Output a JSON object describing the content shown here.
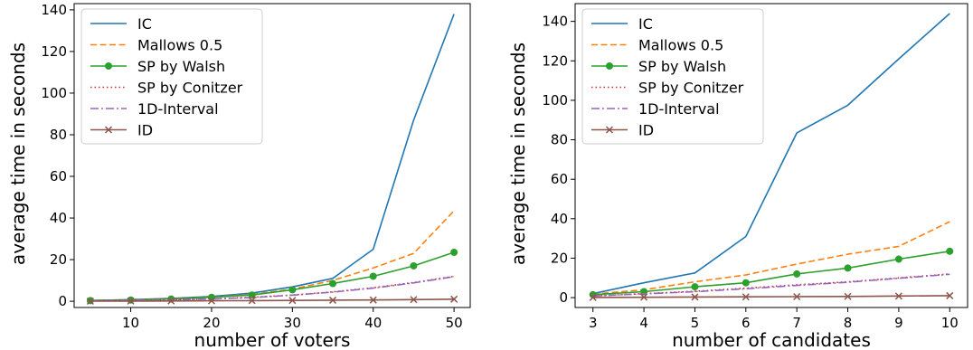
{
  "chart_data": [
    {
      "type": "line",
      "xlabel": "number of voters",
      "ylabel": "average time in seconds",
      "xlim": [
        3,
        52
      ],
      "ylim": [
        -3,
        143
      ],
      "x_ticks": [
        10,
        20,
        30,
        40,
        50
      ],
      "y_ticks": [
        0,
        20,
        40,
        60,
        80,
        100,
        120,
        140
      ],
      "legend_position": "top-left",
      "x": [
        5,
        10,
        15,
        20,
        25,
        30,
        35,
        40,
        45,
        50
      ],
      "series": [
        {
          "name": "IC",
          "color": "#1f77b4",
          "style": "solid",
          "marker": "none",
          "values": [
            0.4,
            0.8,
            1.4,
            2.3,
            3.9,
            6.9,
            11.0,
            25.0,
            87.0,
            138.0
          ]
        },
        {
          "name": "Mallows 0.5",
          "color": "#ff7f0e",
          "style": "dashed",
          "marker": "none",
          "values": [
            0.3,
            0.7,
            1.2,
            2.0,
            3.3,
            5.8,
            10.0,
            16.0,
            23.0,
            43.5
          ]
        },
        {
          "name": "SP by Walsh",
          "color": "#2ca02c",
          "style": "solid",
          "marker": "circle",
          "values": [
            0.3,
            0.6,
            1.1,
            1.9,
            3.0,
            5.5,
            8.5,
            12.0,
            17.0,
            23.5
          ]
        },
        {
          "name": "SP by Conitzer",
          "color": "#d62728",
          "style": "dotted",
          "marker": "none",
          "values": [
            0.2,
            0.4,
            0.7,
            1.1,
            1.9,
            3.0,
            4.5,
            6.5,
            9.0,
            12.0
          ]
        },
        {
          "name": "1D-Interval",
          "color": "#9467bd",
          "style": "dashdot",
          "marker": "none",
          "values": [
            0.2,
            0.4,
            0.7,
            1.1,
            1.8,
            2.9,
            4.4,
            6.3,
            8.8,
            11.8
          ]
        },
        {
          "name": "ID",
          "color": "#8c564b",
          "style": "solid",
          "marker": "x",
          "values": [
            0.05,
            0.1,
            0.15,
            0.2,
            0.3,
            0.4,
            0.5,
            0.6,
            0.8,
            1.0
          ]
        }
      ]
    },
    {
      "type": "line",
      "xlabel": "number of candidates",
      "ylabel": "average time in seconds",
      "xlim": [
        2.65,
        10.35
      ],
      "ylim": [
        -5,
        149
      ],
      "x_ticks": [
        3,
        4,
        5,
        6,
        7,
        8,
        9,
        10
      ],
      "y_ticks": [
        0,
        20,
        40,
        60,
        80,
        100,
        120,
        140
      ],
      "legend_position": "top-left",
      "x": [
        3,
        4,
        5,
        6,
        7,
        8,
        9,
        10
      ],
      "series": [
        {
          "name": "IC",
          "color": "#1f77b4",
          "style": "solid",
          "marker": "none",
          "values": [
            2.0,
            7.5,
            12.5,
            31.0,
            83.5,
            97.5,
            121.0,
            144.0
          ]
        },
        {
          "name": "Mallows 0.5",
          "color": "#ff7f0e",
          "style": "dashed",
          "marker": "none",
          "values": [
            1.8,
            4.0,
            8.0,
            11.5,
            17.0,
            22.0,
            26.0,
            38.5
          ]
        },
        {
          "name": "SP by Walsh",
          "color": "#2ca02c",
          "style": "solid",
          "marker": "circle",
          "values": [
            1.5,
            3.0,
            5.5,
            7.5,
            12.0,
            15.0,
            19.5,
            23.5
          ]
        },
        {
          "name": "SP by Conitzer",
          "color": "#d62728",
          "style": "dotted",
          "marker": "none",
          "values": [
            0.8,
            2.0,
            3.2,
            4.8,
            6.5,
            8.0,
            10.0,
            12.0
          ]
        },
        {
          "name": "1D-Interval",
          "color": "#9467bd",
          "style": "dashdot",
          "marker": "none",
          "values": [
            0.8,
            1.9,
            3.0,
            4.5,
            6.2,
            7.8,
            9.8,
            11.8
          ]
        },
        {
          "name": "ID",
          "color": "#8c564b",
          "style": "solid",
          "marker": "x",
          "values": [
            0.1,
            0.2,
            0.3,
            0.4,
            0.5,
            0.6,
            0.8,
            1.0
          ]
        }
      ]
    }
  ]
}
